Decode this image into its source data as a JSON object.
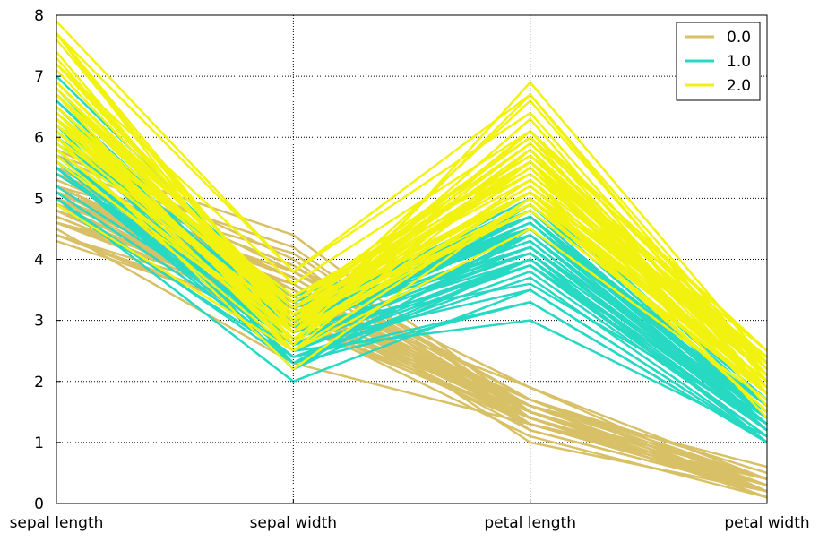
{
  "chart_data": {
    "type": "parallel_coordinates",
    "title": "",
    "axes": [
      "sepal length",
      "sepal width",
      "petal length",
      "petal width"
    ],
    "ylim": [
      0,
      8
    ],
    "yticks": [
      "0",
      "1",
      "2",
      "3",
      "4",
      "5",
      "6",
      "7",
      "8"
    ],
    "grid": true,
    "legend": {
      "placement": "top-right",
      "entries": [
        "0.0",
        "1.0",
        "2.0"
      ]
    },
    "colors": {
      "0.0": "#d8c066",
      "1.0": "#27d9c3",
      "2.0": "#f2f210"
    },
    "series": [
      {
        "name": "0.0",
        "values": [
          [
            5.1,
            3.5,
            1.4,
            0.2
          ],
          [
            4.9,
            3.0,
            1.4,
            0.2
          ],
          [
            4.7,
            3.2,
            1.3,
            0.2
          ],
          [
            4.6,
            3.1,
            1.5,
            0.2
          ],
          [
            5.0,
            3.6,
            1.4,
            0.2
          ],
          [
            5.4,
            3.9,
            1.7,
            0.4
          ],
          [
            4.6,
            3.4,
            1.4,
            0.3
          ],
          [
            5.0,
            3.4,
            1.5,
            0.2
          ],
          [
            4.4,
            2.9,
            1.4,
            0.2
          ],
          [
            4.9,
            3.1,
            1.5,
            0.1
          ],
          [
            5.4,
            3.7,
            1.5,
            0.2
          ],
          [
            4.8,
            3.4,
            1.6,
            0.2
          ],
          [
            4.8,
            3.0,
            1.4,
            0.1
          ],
          [
            4.3,
            3.0,
            1.1,
            0.1
          ],
          [
            5.8,
            4.0,
            1.2,
            0.2
          ],
          [
            5.7,
            4.4,
            1.5,
            0.4
          ],
          [
            5.4,
            3.9,
            1.3,
            0.4
          ],
          [
            5.1,
            3.5,
            1.4,
            0.3
          ],
          [
            5.7,
            3.8,
            1.7,
            0.3
          ],
          [
            5.1,
            3.8,
            1.5,
            0.3
          ],
          [
            5.4,
            3.4,
            1.7,
            0.2
          ],
          [
            5.1,
            3.7,
            1.5,
            0.4
          ],
          [
            4.6,
            3.6,
            1.0,
            0.2
          ],
          [
            5.1,
            3.3,
            1.7,
            0.5
          ],
          [
            4.8,
            3.4,
            1.9,
            0.2
          ],
          [
            5.0,
            3.0,
            1.6,
            0.2
          ],
          [
            5.0,
            3.4,
            1.6,
            0.4
          ],
          [
            5.2,
            3.5,
            1.5,
            0.2
          ],
          [
            5.2,
            3.4,
            1.4,
            0.2
          ],
          [
            4.7,
            3.2,
            1.6,
            0.2
          ],
          [
            4.8,
            3.1,
            1.6,
            0.2
          ],
          [
            5.4,
            3.4,
            1.5,
            0.4
          ],
          [
            5.2,
            4.1,
            1.5,
            0.1
          ],
          [
            5.5,
            4.2,
            1.4,
            0.2
          ],
          [
            4.9,
            3.1,
            1.5,
            0.2
          ],
          [
            5.0,
            3.2,
            1.2,
            0.2
          ],
          [
            5.5,
            3.5,
            1.3,
            0.2
          ],
          [
            4.9,
            3.6,
            1.4,
            0.1
          ],
          [
            4.4,
            3.0,
            1.3,
            0.2
          ],
          [
            5.1,
            3.4,
            1.5,
            0.2
          ],
          [
            5.0,
            3.5,
            1.3,
            0.3
          ],
          [
            4.5,
            2.3,
            1.3,
            0.3
          ],
          [
            4.4,
            3.2,
            1.3,
            0.2
          ],
          [
            5.0,
            3.5,
            1.6,
            0.6
          ],
          [
            5.1,
            3.8,
            1.9,
            0.4
          ],
          [
            4.8,
            3.0,
            1.4,
            0.3
          ],
          [
            5.1,
            3.8,
            1.6,
            0.2
          ],
          [
            4.6,
            3.2,
            1.4,
            0.2
          ],
          [
            5.3,
            3.7,
            1.5,
            0.2
          ],
          [
            5.0,
            3.3,
            1.4,
            0.2
          ]
        ]
      },
      {
        "name": "1.0",
        "values": [
          [
            7.0,
            3.2,
            4.7,
            1.4
          ],
          [
            6.4,
            3.2,
            4.5,
            1.5
          ],
          [
            6.9,
            3.1,
            4.9,
            1.5
          ],
          [
            5.5,
            2.3,
            4.0,
            1.3
          ],
          [
            6.5,
            2.8,
            4.6,
            1.5
          ],
          [
            5.7,
            2.8,
            4.5,
            1.3
          ],
          [
            6.3,
            3.3,
            4.7,
            1.6
          ],
          [
            4.9,
            2.4,
            3.3,
            1.0
          ],
          [
            6.6,
            2.9,
            4.6,
            1.3
          ],
          [
            5.2,
            2.7,
            3.9,
            1.4
          ],
          [
            5.0,
            2.0,
            3.5,
            1.0
          ],
          [
            5.9,
            3.0,
            4.2,
            1.5
          ],
          [
            6.0,
            2.2,
            4.0,
            1.0
          ],
          [
            6.1,
            2.9,
            4.7,
            1.4
          ],
          [
            5.6,
            2.9,
            3.6,
            1.3
          ],
          [
            6.7,
            3.1,
            4.4,
            1.4
          ],
          [
            5.6,
            3.0,
            4.5,
            1.5
          ],
          [
            5.8,
            2.7,
            4.1,
            1.0
          ],
          [
            6.2,
            2.2,
            4.5,
            1.5
          ],
          [
            5.6,
            2.5,
            3.9,
            1.1
          ],
          [
            5.9,
            3.2,
            4.8,
            1.8
          ],
          [
            6.1,
            2.8,
            4.0,
            1.3
          ],
          [
            6.3,
            2.5,
            4.9,
            1.5
          ],
          [
            6.1,
            2.8,
            4.7,
            1.2
          ],
          [
            6.4,
            2.9,
            4.3,
            1.3
          ],
          [
            6.6,
            3.0,
            4.4,
            1.4
          ],
          [
            6.8,
            2.8,
            4.8,
            1.4
          ],
          [
            6.7,
            3.0,
            5.0,
            1.7
          ],
          [
            6.0,
            2.9,
            4.5,
            1.5
          ],
          [
            5.7,
            2.6,
            3.5,
            1.0
          ],
          [
            5.5,
            2.4,
            3.8,
            1.1
          ],
          [
            5.5,
            2.4,
            3.7,
            1.0
          ],
          [
            5.8,
            2.7,
            3.9,
            1.2
          ],
          [
            6.0,
            2.7,
            5.1,
            1.6
          ],
          [
            5.4,
            3.0,
            4.5,
            1.5
          ],
          [
            6.0,
            3.4,
            4.5,
            1.6
          ],
          [
            6.7,
            3.1,
            4.7,
            1.5
          ],
          [
            6.3,
            2.3,
            4.4,
            1.3
          ],
          [
            5.6,
            3.0,
            4.1,
            1.3
          ],
          [
            5.5,
            2.5,
            4.0,
            1.3
          ],
          [
            5.5,
            2.6,
            4.4,
            1.2
          ],
          [
            6.1,
            3.0,
            4.6,
            1.4
          ],
          [
            5.8,
            2.6,
            4.0,
            1.2
          ],
          [
            5.0,
            2.3,
            3.3,
            1.0
          ],
          [
            5.6,
            2.7,
            4.2,
            1.3
          ],
          [
            5.7,
            3.0,
            4.2,
            1.2
          ],
          [
            5.7,
            2.9,
            4.2,
            1.3
          ],
          [
            6.2,
            2.9,
            4.3,
            1.3
          ],
          [
            5.1,
            2.5,
            3.0,
            1.1
          ],
          [
            5.7,
            2.8,
            4.1,
            1.3
          ]
        ]
      },
      {
        "name": "2.0",
        "values": [
          [
            6.3,
            3.3,
            6.0,
            2.5
          ],
          [
            5.8,
            2.7,
            5.1,
            1.9
          ],
          [
            7.1,
            3.0,
            5.9,
            2.1
          ],
          [
            6.3,
            2.9,
            5.6,
            1.8
          ],
          [
            6.5,
            3.0,
            5.8,
            2.2
          ],
          [
            7.6,
            3.0,
            6.6,
            2.1
          ],
          [
            4.9,
            2.5,
            4.5,
            1.7
          ],
          [
            7.3,
            2.9,
            6.3,
            1.8
          ],
          [
            6.7,
            2.5,
            5.8,
            1.8
          ],
          [
            7.2,
            3.6,
            6.1,
            2.5
          ],
          [
            6.5,
            3.2,
            5.1,
            2.0
          ],
          [
            6.4,
            2.7,
            5.3,
            1.9
          ],
          [
            6.8,
            3.0,
            5.5,
            2.1
          ],
          [
            5.7,
            2.5,
            5.0,
            2.0
          ],
          [
            5.8,
            2.8,
            5.1,
            2.4
          ],
          [
            6.4,
            3.2,
            5.3,
            2.3
          ],
          [
            6.5,
            3.0,
            5.5,
            1.8
          ],
          [
            7.7,
            3.8,
            6.7,
            2.2
          ],
          [
            7.7,
            2.6,
            6.9,
            2.3
          ],
          [
            6.0,
            2.2,
            5.0,
            1.5
          ],
          [
            6.9,
            3.2,
            5.7,
            2.3
          ],
          [
            5.6,
            2.8,
            4.9,
            2.0
          ],
          [
            7.7,
            2.8,
            6.7,
            2.0
          ],
          [
            6.3,
            2.7,
            4.9,
            1.8
          ],
          [
            6.7,
            3.3,
            5.7,
            2.1
          ],
          [
            7.2,
            3.2,
            6.0,
            1.8
          ],
          [
            6.2,
            2.8,
            4.8,
            1.8
          ],
          [
            6.1,
            3.0,
            4.9,
            1.8
          ],
          [
            6.4,
            2.8,
            5.6,
            2.1
          ],
          [
            7.2,
            3.0,
            5.8,
            1.6
          ],
          [
            7.4,
            2.8,
            6.1,
            1.9
          ],
          [
            7.9,
            3.8,
            6.4,
            2.0
          ],
          [
            6.4,
            2.8,
            5.6,
            2.2
          ],
          [
            6.3,
            2.8,
            5.1,
            1.5
          ],
          [
            6.1,
            2.6,
            5.6,
            1.4
          ],
          [
            7.7,
            3.0,
            6.1,
            2.3
          ],
          [
            6.3,
            3.4,
            5.6,
            2.4
          ],
          [
            6.4,
            3.1,
            5.5,
            1.8
          ],
          [
            6.0,
            3.0,
            4.8,
            1.8
          ],
          [
            6.9,
            3.1,
            5.4,
            2.1
          ],
          [
            6.7,
            3.1,
            5.6,
            2.4
          ],
          [
            6.9,
            3.1,
            5.1,
            2.3
          ],
          [
            5.8,
            2.7,
            5.1,
            1.9
          ],
          [
            6.8,
            3.2,
            5.9,
            2.3
          ],
          [
            6.7,
            3.3,
            5.7,
            2.5
          ],
          [
            6.7,
            3.0,
            5.2,
            2.3
          ],
          [
            6.3,
            2.5,
            5.0,
            1.9
          ],
          [
            6.5,
            3.0,
            5.2,
            2.0
          ],
          [
            6.2,
            3.4,
            5.4,
            2.3
          ],
          [
            5.9,
            3.0,
            5.1,
            1.8
          ]
        ]
      }
    ]
  }
}
